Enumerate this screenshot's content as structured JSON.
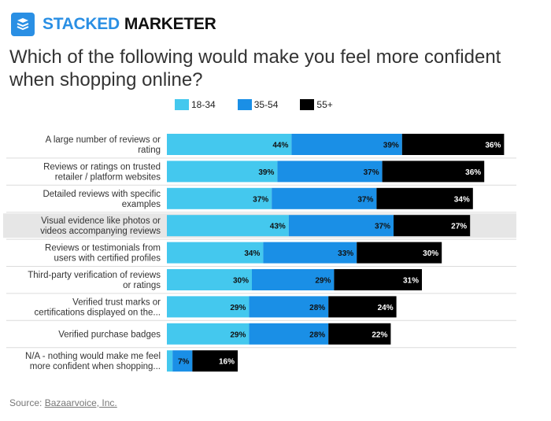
{
  "brand": {
    "part1": "STACKED",
    "part2": "MARKETER",
    "logo_icon": "stacked-layers-icon"
  },
  "question": "Which of the following would make you feel more confident when shopping online?",
  "source": {
    "label": "Source:",
    "link": "Bazaarvoice, Inc."
  },
  "chart_data": {
    "type": "bar",
    "orientation": "horizontal-stacked",
    "categories": [
      [
        "A large number of reviews or",
        "rating"
      ],
      [
        "Reviews or ratings on trusted",
        "retailer / platform websites"
      ],
      [
        "Detailed reviews with specific",
        "examples"
      ],
      [
        "Visual evidence like photos or",
        "videos accompanying reviews"
      ],
      [
        "Reviews or testimonials from",
        "users with certified profiles"
      ],
      [
        "Third-party verification of reviews",
        "or ratings"
      ],
      [
        "Verified trust marks or",
        "certifications displayed on the..."
      ],
      [
        "Verified purchase badges"
      ],
      [
        "N/A - nothing would make me feel",
        "more confident when shopping..."
      ]
    ],
    "series": [
      {
        "name": "18-34",
        "color": "#44c8ee",
        "values": [
          44,
          39,
          37,
          43,
          34,
          30,
          29,
          29,
          2
        ]
      },
      {
        "name": "35-54",
        "color": "#1a8fe6",
        "values": [
          39,
          37,
          37,
          37,
          33,
          29,
          28,
          28,
          7
        ]
      },
      {
        "name": "55+",
        "color": "#000000",
        "values": [
          36,
          36,
          34,
          27,
          30,
          31,
          24,
          22,
          16
        ]
      }
    ],
    "highlighted_row": 3,
    "legend_position": "top",
    "grid": false,
    "data_label_suffix": "%"
  }
}
